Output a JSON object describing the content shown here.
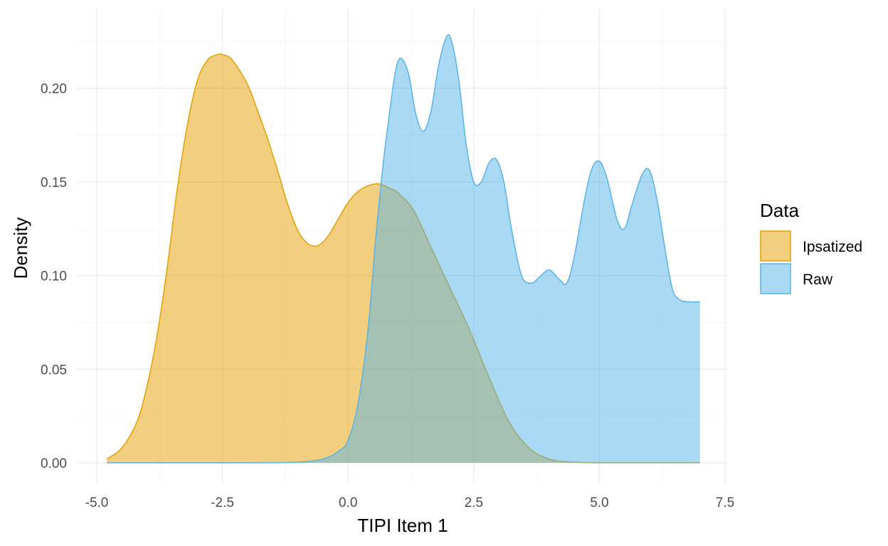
{
  "chart_data": {
    "type": "area",
    "xlabel": "TIPI Item 1",
    "ylabel": "Density",
    "xlim": [
      -5.0,
      7.5
    ],
    "ylim": [
      0.0,
      0.23
    ],
    "x_ticks": [
      -5.0,
      -2.5,
      0.0,
      2.5,
      5.0,
      7.5
    ],
    "x_tick_labels": [
      "-5.0",
      "-2.5",
      "0.0",
      "2.5",
      "5.0",
      "7.5"
    ],
    "y_ticks": [
      0.0,
      0.05,
      0.1,
      0.15,
      0.2
    ],
    "y_tick_labels": [
      "0.00",
      "0.05",
      "0.10",
      "0.15",
      "0.20"
    ],
    "grid": true,
    "legend": {
      "title": "Data",
      "placement": "right"
    },
    "series": [
      {
        "name": "Ipsatized",
        "line_color": "#E69F00",
        "fill_color": "#E69F00",
        "x": [
          -4.8,
          -4.5,
          -4.2,
          -4.0,
          -3.8,
          -3.6,
          -3.4,
          -3.2,
          -3.0,
          -2.8,
          -2.6,
          -2.5,
          -2.3,
          -2.0,
          -1.8,
          -1.6,
          -1.4,
          -1.2,
          -1.0,
          -0.8,
          -0.6,
          -0.4,
          -0.2,
          0.0,
          0.2,
          0.4,
          0.6,
          0.8,
          1.0,
          1.3,
          1.6,
          2.0,
          2.4,
          2.8,
          3.2,
          3.6,
          4.0,
          4.4,
          5.0,
          6.0,
          7.0
        ],
        "y": [
          0.002,
          0.008,
          0.022,
          0.041,
          0.068,
          0.104,
          0.146,
          0.18,
          0.204,
          0.215,
          0.218,
          0.218,
          0.215,
          0.202,
          0.188,
          0.173,
          0.156,
          0.138,
          0.124,
          0.117,
          0.116,
          0.121,
          0.13,
          0.139,
          0.145,
          0.148,
          0.149,
          0.147,
          0.144,
          0.135,
          0.118,
          0.095,
          0.072,
          0.046,
          0.022,
          0.008,
          0.002,
          0.0005,
          0.0,
          0.0,
          0.0
        ]
      },
      {
        "name": "Raw",
        "line_color": "#56B4E9",
        "fill_color": "#56B4E9",
        "x": [
          -4.8,
          -2.0,
          -1.0,
          -0.5,
          -0.2,
          0.0,
          0.2,
          0.4,
          0.55,
          0.7,
          0.85,
          0.95,
          1.05,
          1.2,
          1.35,
          1.5,
          1.65,
          1.8,
          1.95,
          2.05,
          2.2,
          2.35,
          2.5,
          2.65,
          2.8,
          2.95,
          3.1,
          3.25,
          3.45,
          3.65,
          3.8,
          4.0,
          4.2,
          4.35,
          4.5,
          4.7,
          4.85,
          5.0,
          5.15,
          5.35,
          5.5,
          5.65,
          5.85,
          6.0,
          6.15,
          6.3,
          6.45,
          6.6,
          6.8,
          7.0
        ],
        "y": [
          0.0,
          0.0,
          0.0004,
          0.002,
          0.006,
          0.012,
          0.032,
          0.072,
          0.12,
          0.16,
          0.192,
          0.21,
          0.216,
          0.208,
          0.186,
          0.177,
          0.188,
          0.212,
          0.227,
          0.226,
          0.205,
          0.17,
          0.15,
          0.15,
          0.16,
          0.162,
          0.15,
          0.125,
          0.1,
          0.096,
          0.099,
          0.103,
          0.098,
          0.096,
          0.11,
          0.14,
          0.157,
          0.161,
          0.152,
          0.13,
          0.125,
          0.138,
          0.154,
          0.156,
          0.14,
          0.115,
          0.093,
          0.087,
          0.086,
          0.086
        ]
      }
    ]
  }
}
